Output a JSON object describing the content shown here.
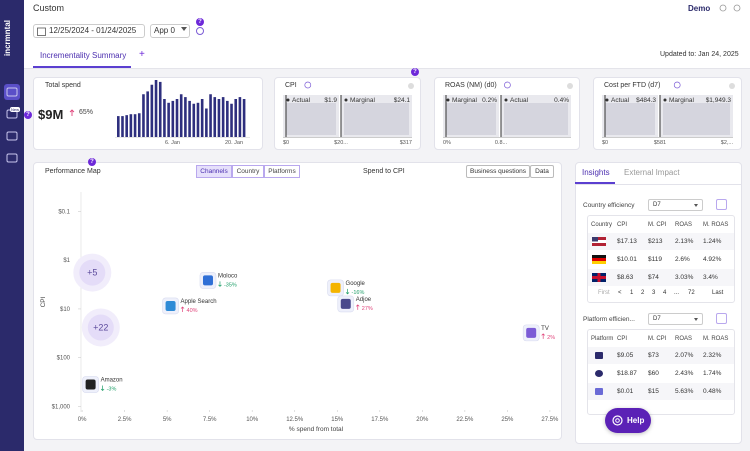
{
  "sidebar": {
    "logo": "incrmntal",
    "badge": "New"
  },
  "header": {
    "title": "Custom",
    "date_range": "12/25/2024 - 01/24/2025",
    "app": "App 0",
    "user": "Demo"
  },
  "help_badges": [
    "?",
    "?",
    "?",
    "?"
  ],
  "tabs": {
    "active": "Incrementality Summary",
    "add": "+",
    "updated": "Updated to: Jan 24, 2025"
  },
  "total_spend": {
    "title": "Total spend",
    "value": "$9M",
    "change": "65%",
    "bars": [
      22,
      22,
      23,
      24,
      24,
      25,
      45,
      48,
      55,
      60,
      58,
      40,
      36,
      38,
      40,
      45,
      42,
      38,
      35,
      36,
      40,
      30,
      45,
      42,
      40,
      42,
      38,
      35,
      40,
      42,
      40
    ],
    "x_labels": [
      "6. Jan",
      "20. Jan"
    ]
  },
  "cards": [
    {
      "title": "CPI",
      "left": {
        "label": "Actual",
        "value": "$1.9"
      },
      "right": {
        "label": "Marginal",
        "value": "$24.1"
      },
      "axis": [
        "$0",
        "$20...",
        "$317"
      ]
    },
    {
      "title": "ROAS (NM) (d0)",
      "left": {
        "label": "Marginal",
        "value": "0.2%"
      },
      "right": {
        "label": "Actual",
        "value": "0.4%"
      },
      "axis": [
        "0%",
        "0.8..."
      ]
    },
    {
      "title": "Cost per FTD (d7)",
      "left": {
        "label": "Actual",
        "value": "$484.3"
      },
      "right": {
        "label": "Marginal",
        "value": "$1,949.3"
      },
      "axis": [
        "$0",
        "$581",
        "$2,..."
      ]
    }
  ],
  "performance_map": {
    "title": "Performance Map",
    "segments": [
      "Channels",
      "Country",
      "Platforms"
    ],
    "metric": "Spend to CPI",
    "buttons": [
      "Business questions",
      "Data"
    ],
    "y_label": "CPI",
    "x_label": "% spend from total",
    "y_scale": "log",
    "y_inverted": true,
    "xlim": [
      -0.3,
      27.8
    ],
    "ylim": [
      0.04,
      1300
    ],
    "xticks": [
      {
        "value": 0,
        "label": "0%"
      },
      {
        "value": 2.5,
        "label": "2.5%"
      },
      {
        "value": 5,
        "label": "5%"
      },
      {
        "value": 7.5,
        "label": "7.5%"
      },
      {
        "value": 10,
        "label": "10%"
      },
      {
        "value": 12.5,
        "label": "12.5%"
      },
      {
        "value": 15,
        "label": "15%"
      },
      {
        "value": 17.5,
        "label": "17.5%"
      },
      {
        "value": 20,
        "label": "20%"
      },
      {
        "value": 22.5,
        "label": "22.5%"
      },
      {
        "value": 25,
        "label": "25%"
      },
      {
        "value": 27.5,
        "label": "27.5%"
      }
    ],
    "yticks": [
      {
        "value": 0.1,
        "label": "$0.1"
      },
      {
        "value": 1,
        "label": "$1"
      },
      {
        "value": 10,
        "label": "$10"
      },
      {
        "value": 100,
        "label": "$100"
      },
      {
        "value": 1000,
        "label": "$1,000"
      }
    ],
    "points": [
      {
        "name": "Moloco",
        "x": 7.4,
        "y": 2.6,
        "change": "-35%"
      },
      {
        "name": "Apple Search",
        "x": 5.2,
        "y": 8.7,
        "change": "40%"
      },
      {
        "name": "Google",
        "x": 14.9,
        "y": 3.7,
        "change": "-16%"
      },
      {
        "name": "Adjoe",
        "x": 15.5,
        "y": 7.9,
        "change": "27%"
      },
      {
        "name": "TV",
        "x": 26.4,
        "y": 31,
        "change": "2%"
      },
      {
        "name": "Amazon",
        "x": 0.5,
        "y": 355,
        "change": "-3%"
      }
    ],
    "clusters": [
      {
        "label": "+5",
        "x": 0.6,
        "y": 1.8
      },
      {
        "label": "+22",
        "x": 1.1,
        "y": 24
      }
    ]
  },
  "insights": {
    "tabs": [
      "Insights",
      "External Impact"
    ],
    "tables": [
      {
        "title": "Country efficiency",
        "period": "D7",
        "columns": [
          "Country",
          "CPI",
          "M. CPI",
          "ROAS",
          "M. ROAS"
        ],
        "rows": [
          [
            "$17.13",
            "$213",
            "2.13%",
            "1.24%"
          ],
          [
            "$10.01",
            "$119",
            "2.6%",
            "4.92%"
          ],
          [
            "$8.63",
            "$74",
            "3.03%",
            "3.4%"
          ]
        ],
        "pagination": [
          "First",
          "<",
          "1",
          "2",
          "3",
          "4",
          "...",
          "72",
          "Last"
        ]
      },
      {
        "title": "Platform efficien...",
        "period": "D7",
        "columns": [
          "Platform",
          "CPI",
          "M. CPI",
          "ROAS",
          "M. ROAS"
        ],
        "rows": [
          [
            "$9.05",
            "$73",
            "2.07%",
            "2.32%"
          ],
          [
            "$18.87",
            "$60",
            "2.43%",
            "1.74%"
          ],
          [
            "$0.01",
            "$15",
            "5.63%",
            "0.48%"
          ]
        ]
      }
    ]
  },
  "help_button": "Help"
}
